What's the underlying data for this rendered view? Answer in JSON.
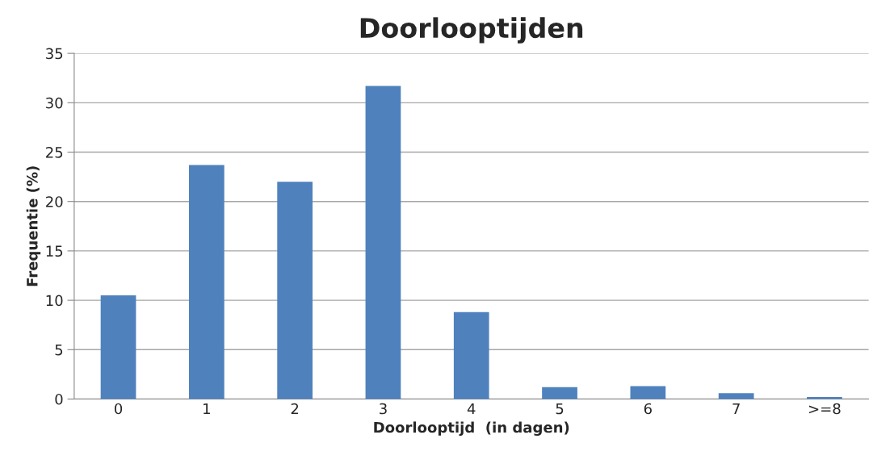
{
  "chart_data": {
    "type": "bar",
    "title": "Doorlooptijden",
    "xlabel": "Doorlooptijd  (in dagen)",
    "ylabel": "Frequentie (%)",
    "categories": [
      "0",
      "1",
      "2",
      "3",
      "4",
      "5",
      "6",
      "7",
      ">=8"
    ],
    "values": [
      10.5,
      23.7,
      22.0,
      31.7,
      8.8,
      1.2,
      1.3,
      0.6,
      0.2
    ],
    "color": "#4f81bd",
    "ylim": [
      0,
      35
    ],
    "yticks": [
      0,
      5,
      10,
      15,
      20,
      25,
      30,
      35
    ],
    "grid": "y",
    "legend": false
  }
}
